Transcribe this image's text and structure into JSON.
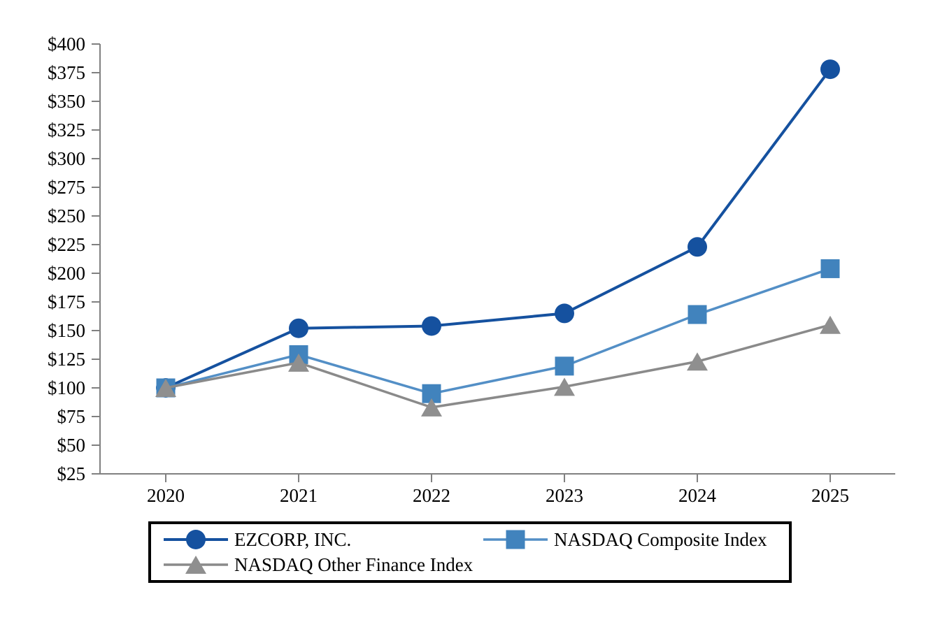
{
  "chart_data": {
    "type": "line",
    "title": "",
    "xlabel": "",
    "ylabel": "",
    "x": [
      2020,
      2021,
      2022,
      2023,
      2024,
      2025
    ],
    "x_tick_labels": [
      "2020",
      "2021",
      "2022",
      "2023",
      "2024",
      "2025"
    ],
    "series": [
      {
        "name": "EZCORP, INC.",
        "marker": "circle",
        "color": "#15519f",
        "line_color": "#15519f",
        "values": [
          100,
          152,
          154,
          165,
          223,
          378
        ]
      },
      {
        "name": "NASDAQ Composite Index",
        "marker": "square",
        "color": "#4183bd",
        "line_color": "#538fc6",
        "values": [
          100,
          129,
          95,
          119,
          164,
          204
        ]
      },
      {
        "name": "NASDAQ Other Finance Index",
        "marker": "triangle",
        "color": "#8f8f8f",
        "line_color": "#8a8a8a",
        "values": [
          100,
          122,
          83,
          101,
          123,
          155
        ]
      }
    ],
    "ylim": [
      25,
      400
    ],
    "y_tick_step": 25,
    "y_tick_labels": [
      "$25",
      "$50",
      "$75",
      "$100",
      "$125",
      "$150",
      "$175",
      "$200",
      "$225",
      "$250",
      "$275",
      "$300",
      "$325",
      "$350",
      "$375",
      "$400"
    ],
    "axis_color": "#808080",
    "grid": false,
    "legend_position": "bottom"
  }
}
